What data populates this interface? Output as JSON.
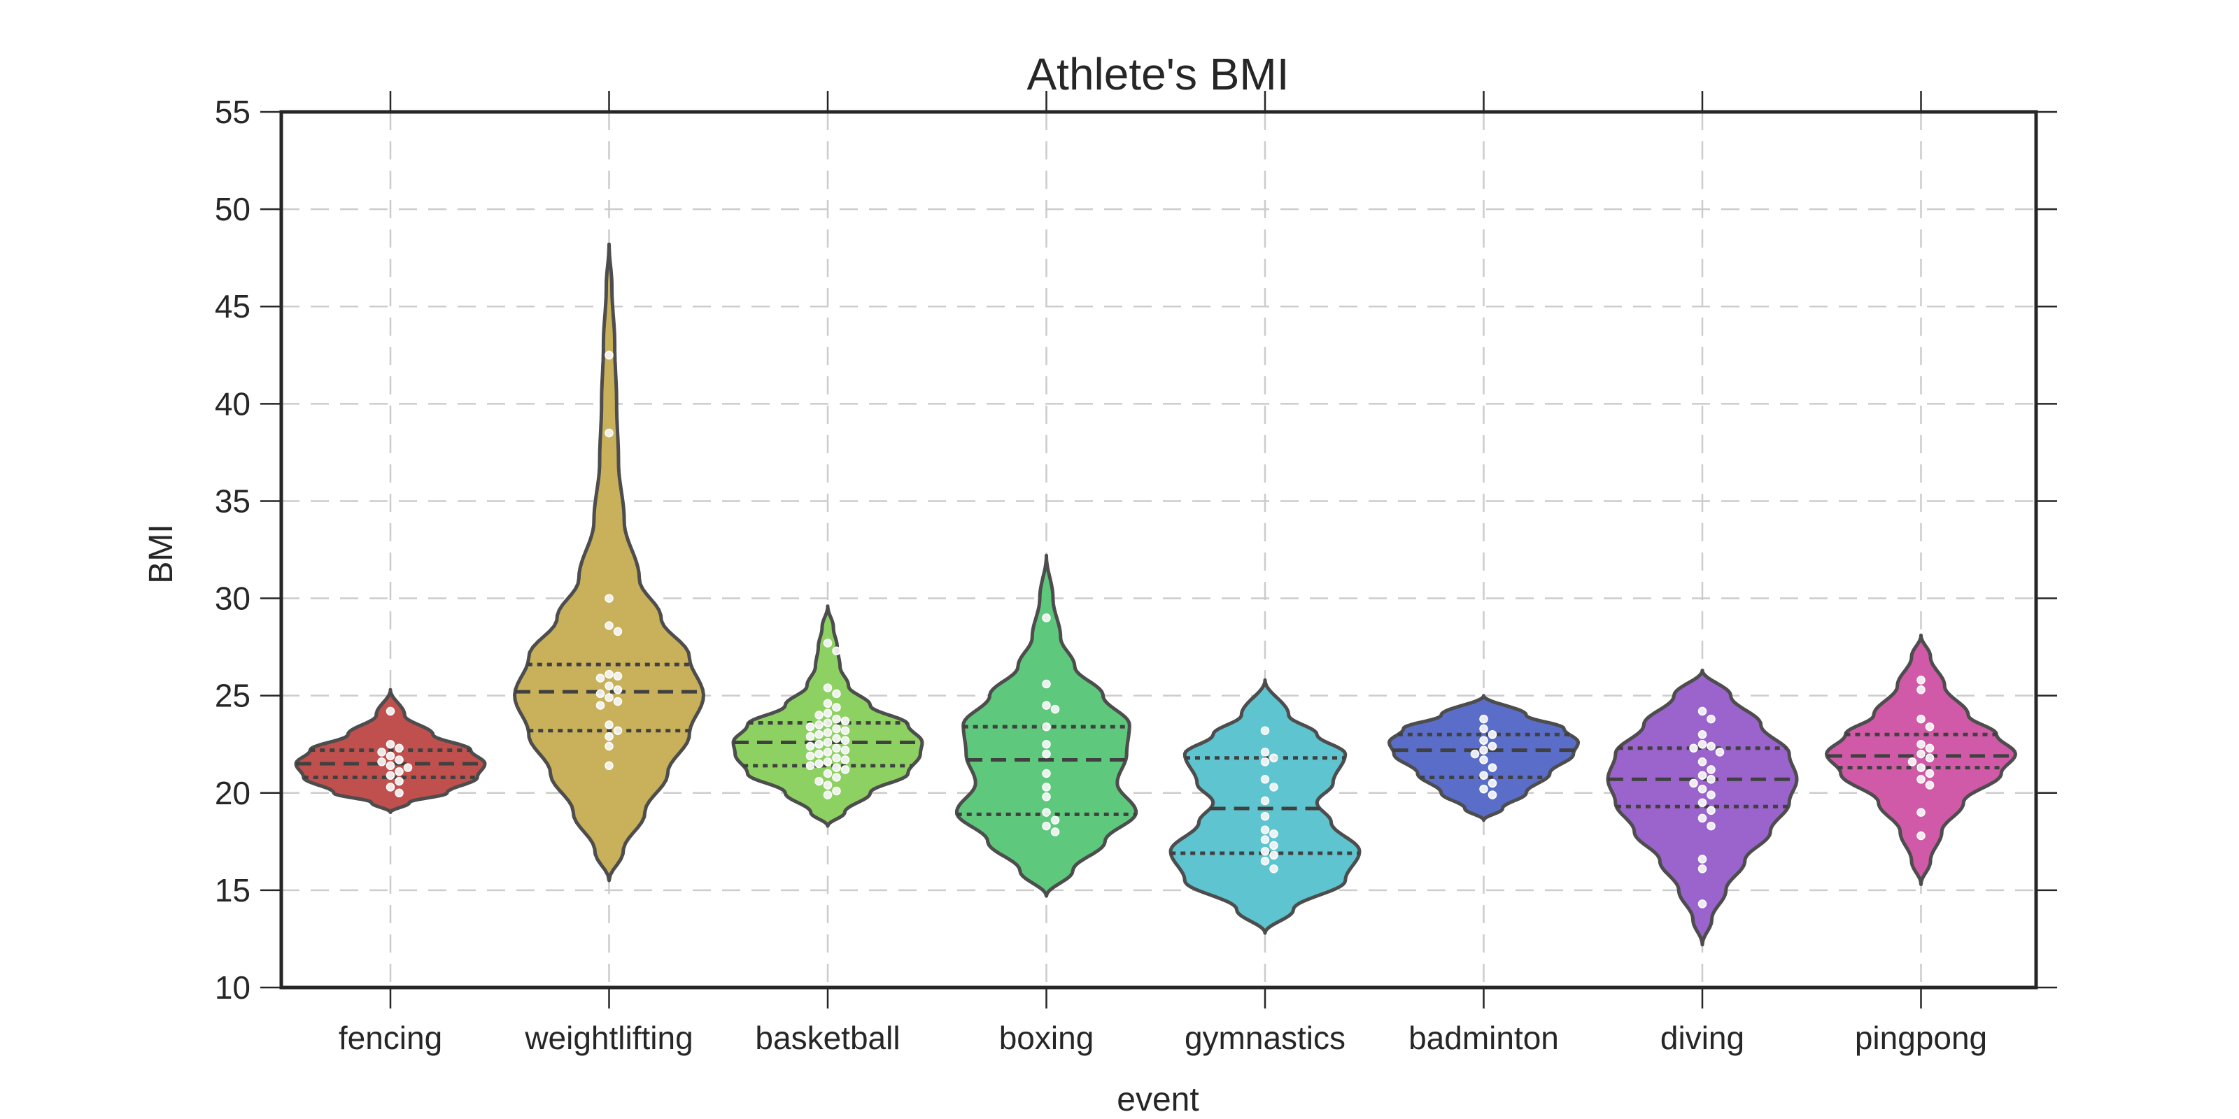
{
  "chart_data": {
    "type": "violin",
    "title": "Athlete's BMI",
    "xlabel": "event",
    "ylabel": "BMI",
    "ylim": [
      10,
      55
    ],
    "yticks": [
      10,
      15,
      20,
      25,
      30,
      35,
      40,
      45,
      50,
      55
    ],
    "grid": true,
    "inner": "quartile",
    "categories": [
      "fencing",
      "weightlifting",
      "basketball",
      "boxing",
      "gymnastics",
      "badminton",
      "diving",
      "pingpong"
    ],
    "series": [
      {
        "name": "fencing",
        "color": "#c0504d",
        "range": [
          19.0,
          25.3
        ],
        "quartiles": [
          20.8,
          21.5,
          22.2
        ],
        "density": [
          [
            19.0,
            0.0
          ],
          [
            19.5,
            0.2
          ],
          [
            20.0,
            0.6
          ],
          [
            20.8,
            0.92
          ],
          [
            21.5,
            1.0
          ],
          [
            22.2,
            0.85
          ],
          [
            23.0,
            0.45
          ],
          [
            24.0,
            0.15
          ],
          [
            25.3,
            0.0
          ]
        ],
        "points": [
          24.2,
          22.5,
          22.3,
          22.1,
          21.9,
          21.7,
          21.6,
          21.4,
          21.3,
          21.1,
          20.9,
          20.6,
          20.3,
          20.0
        ]
      },
      {
        "name": "weightlifting",
        "color": "#c8b15a",
        "range": [
          15.5,
          48.2
        ],
        "quartiles": [
          23.2,
          25.2,
          26.6
        ],
        "density": [
          [
            15.5,
            0.0
          ],
          [
            17.0,
            0.15
          ],
          [
            19.0,
            0.38
          ],
          [
            21.0,
            0.62
          ],
          [
            23.0,
            0.85
          ],
          [
            25.0,
            1.0
          ],
          [
            27.0,
            0.85
          ],
          [
            29.0,
            0.55
          ],
          [
            31.0,
            0.32
          ],
          [
            34.0,
            0.16
          ],
          [
            37.0,
            0.1
          ],
          [
            40.0,
            0.08
          ],
          [
            43.0,
            0.06
          ],
          [
            46.0,
            0.03
          ],
          [
            48.2,
            0.0
          ]
        ],
        "points": [
          42.5,
          38.5,
          30.0,
          28.6,
          28.3,
          26.1,
          26.0,
          25.9,
          25.5,
          25.3,
          25.1,
          24.9,
          24.7,
          24.5,
          23.5,
          23.2,
          22.9,
          22.4,
          21.4
        ]
      },
      {
        "name": "basketball",
        "color": "#8ed163",
        "range": [
          18.3,
          29.6
        ],
        "quartiles": [
          21.4,
          22.6,
          23.6
        ],
        "density": [
          [
            18.3,
            0.0
          ],
          [
            19.0,
            0.18
          ],
          [
            20.0,
            0.45
          ],
          [
            21.0,
            0.85
          ],
          [
            22.0,
            0.98
          ],
          [
            22.6,
            1.0
          ],
          [
            23.5,
            0.85
          ],
          [
            24.5,
            0.45
          ],
          [
            25.5,
            0.22
          ],
          [
            26.5,
            0.13
          ],
          [
            27.5,
            0.1
          ],
          [
            28.5,
            0.06
          ],
          [
            29.6,
            0.0
          ]
        ],
        "points": [
          27.7,
          27.3,
          25.4,
          25.1,
          24.6,
          24.4,
          24.1,
          24.0,
          23.8,
          23.7,
          23.6,
          23.5,
          23.4,
          23.3,
          23.2,
          23.1,
          23.0,
          22.9,
          22.8,
          22.7,
          22.6,
          22.5,
          22.4,
          22.3,
          22.2,
          22.1,
          22.0,
          21.9,
          21.8,
          21.7,
          21.6,
          21.5,
          21.4,
          21.3,
          21.2,
          21.0,
          20.8,
          20.6,
          20.4,
          20.1,
          19.9
        ]
      },
      {
        "name": "boxing",
        "color": "#5ec97c",
        "range": [
          14.7,
          32.2
        ],
        "quartiles": [
          18.9,
          21.7,
          23.4
        ],
        "density": [
          [
            14.7,
            0.0
          ],
          [
            16.0,
            0.28
          ],
          [
            17.5,
            0.62
          ],
          [
            19.0,
            0.95
          ],
          [
            20.5,
            0.75
          ],
          [
            22.0,
            0.85
          ],
          [
            23.5,
            0.88
          ],
          [
            25.0,
            0.6
          ],
          [
            26.5,
            0.3
          ],
          [
            28.0,
            0.15
          ],
          [
            30.0,
            0.07
          ],
          [
            32.2,
            0.0
          ]
        ],
        "points": [
          29.0,
          25.6,
          24.5,
          24.3,
          23.4,
          22.5,
          22.0,
          21.0,
          20.3,
          19.8,
          19.0,
          18.6,
          18.3,
          18.0
        ]
      },
      {
        "name": "gymnastics",
        "color": "#5ec4cf",
        "range": [
          12.8,
          25.8
        ],
        "quartiles": [
          16.9,
          19.2,
          21.8
        ],
        "density": [
          [
            12.8,
            0.0
          ],
          [
            14.0,
            0.3
          ],
          [
            15.5,
            0.85
          ],
          [
            17.0,
            1.0
          ],
          [
            18.5,
            0.7
          ],
          [
            19.5,
            0.55
          ],
          [
            20.5,
            0.72
          ],
          [
            22.0,
            0.85
          ],
          [
            23.0,
            0.55
          ],
          [
            24.0,
            0.25
          ],
          [
            25.8,
            0.0
          ]
        ],
        "points": [
          23.2,
          22.1,
          21.8,
          21.6,
          20.7,
          20.3,
          19.6,
          18.8,
          18.1,
          17.9,
          17.6,
          17.3,
          17.0,
          16.8,
          16.5,
          16.1
        ]
      },
      {
        "name": "badminton",
        "color": "#5a6ec9",
        "range": [
          18.6,
          25.0
        ],
        "quartiles": [
          20.8,
          22.2,
          23.0
        ],
        "density": [
          [
            18.6,
            0.0
          ],
          [
            19.2,
            0.2
          ],
          [
            20.0,
            0.45
          ],
          [
            21.0,
            0.7
          ],
          [
            22.0,
            0.95
          ],
          [
            22.6,
            1.0
          ],
          [
            23.3,
            0.85
          ],
          [
            24.0,
            0.45
          ],
          [
            25.0,
            0.0
          ]
        ],
        "points": [
          23.8,
          23.3,
          23.0,
          22.7,
          22.4,
          22.2,
          22.0,
          21.7,
          21.3,
          20.9,
          20.5,
          20.2,
          19.9
        ]
      },
      {
        "name": "diving",
        "color": "#9b63cc",
        "range": [
          12.2,
          26.3
        ],
        "quartiles": [
          19.3,
          20.7,
          22.3
        ],
        "density": [
          [
            12.2,
            0.0
          ],
          [
            13.5,
            0.1
          ],
          [
            15.0,
            0.25
          ],
          [
            16.5,
            0.45
          ],
          [
            18.0,
            0.72
          ],
          [
            19.5,
            0.92
          ],
          [
            20.7,
            1.0
          ],
          [
            22.0,
            0.92
          ],
          [
            23.5,
            0.62
          ],
          [
            25.0,
            0.3
          ],
          [
            26.3,
            0.0
          ]
        ],
        "points": [
          24.2,
          23.8,
          23.0,
          22.5,
          22.4,
          22.3,
          22.1,
          21.6,
          21.2,
          20.9,
          20.7,
          20.5,
          20.2,
          19.9,
          19.5,
          19.1,
          18.7,
          18.3,
          16.6,
          16.1,
          14.3
        ]
      },
      {
        "name": "pingpong",
        "color": "#d15aa8",
        "range": [
          15.3,
          28.1
        ],
        "quartiles": [
          21.3,
          21.9,
          23.0
        ],
        "density": [
          [
            15.3,
            0.0
          ],
          [
            16.5,
            0.1
          ],
          [
            18.0,
            0.22
          ],
          [
            19.5,
            0.45
          ],
          [
            21.0,
            0.85
          ],
          [
            22.0,
            1.0
          ],
          [
            23.0,
            0.8
          ],
          [
            24.0,
            0.5
          ],
          [
            25.5,
            0.25
          ],
          [
            27.0,
            0.1
          ],
          [
            28.1,
            0.0
          ]
        ],
        "points": [
          25.8,
          25.3,
          23.8,
          23.4,
          22.5,
          22.3,
          22.0,
          21.8,
          21.6,
          21.3,
          21.0,
          20.7,
          20.4,
          19.0,
          17.8
        ]
      }
    ]
  }
}
